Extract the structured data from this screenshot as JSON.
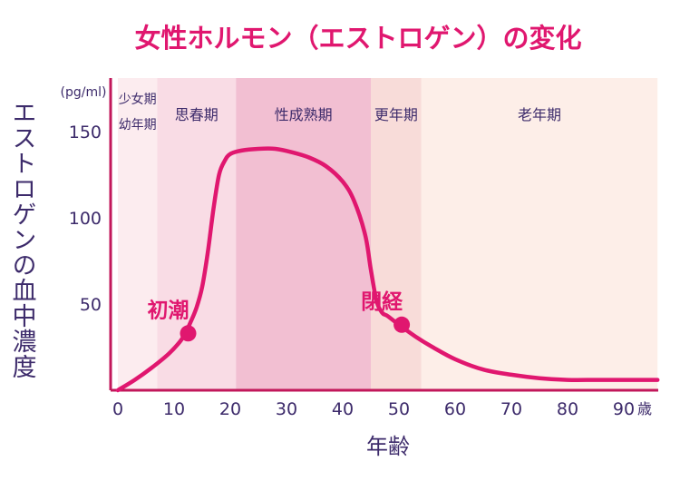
{
  "chart_data": {
    "type": "line",
    "title": "女性ホルモン（エストロゲン）の変化",
    "ylabel": "エストロゲンの血中濃度",
    "yunit": "(pg/ml)",
    "xlabel": "年齢",
    "xunit": "歳",
    "xlim": [
      0,
      96
    ],
    "ylim": [
      0,
      170
    ],
    "xticks": [
      0,
      10,
      20,
      30,
      40,
      50,
      60,
      70,
      80,
      90
    ],
    "yticks": [
      50,
      100,
      150
    ],
    "stages": [
      {
        "name": "少女期",
        "name2": "幼年期",
        "start": 0,
        "end": 7,
        "color": "#fcecef"
      },
      {
        "name": "思春期",
        "start": 7,
        "end": 21,
        "color": "#f9dce5"
      },
      {
        "name": "性成熟期",
        "start": 21,
        "end": 45,
        "color": "#f2bfd2"
      },
      {
        "name": "更年期",
        "start": 45,
        "end": 54,
        "color": "#f8dcd9"
      },
      {
        "name": "老年期",
        "start": 54,
        "end": 96,
        "color": "#fdeee8"
      }
    ],
    "series": [
      {
        "color": "#e0176f",
        "points": [
          [
            0,
            0
          ],
          [
            3,
            6
          ],
          [
            6,
            13
          ],
          [
            9,
            21
          ],
          [
            11,
            28
          ],
          [
            12,
            33
          ],
          [
            13,
            40
          ],
          [
            14,
            48
          ],
          [
            15,
            60
          ],
          [
            16,
            80
          ],
          [
            17,
            105
          ],
          [
            18,
            125
          ],
          [
            19,
            133
          ],
          [
            20,
            137
          ],
          [
            22,
            139
          ],
          [
            25,
            140
          ],
          [
            28,
            140
          ],
          [
            31,
            138
          ],
          [
            34,
            135
          ],
          [
            37,
            130
          ],
          [
            40,
            121
          ],
          [
            42,
            110
          ],
          [
            44,
            90
          ],
          [
            45,
            70
          ],
          [
            46,
            52
          ],
          [
            47,
            45
          ],
          [
            48,
            43
          ],
          [
            50,
            38
          ],
          [
            53,
            31
          ],
          [
            56,
            25
          ],
          [
            60,
            18
          ],
          [
            65,
            12
          ],
          [
            70,
            9
          ],
          [
            75,
            7
          ],
          [
            80,
            6
          ],
          [
            85,
            6
          ],
          [
            90,
            6
          ],
          [
            96,
            6
          ]
        ]
      }
    ],
    "annotations": [
      {
        "label": "初潮",
        "x": 12.5,
        "y": 33
      },
      {
        "label": "閉経",
        "x": 50.5,
        "y": 38
      }
    ]
  }
}
